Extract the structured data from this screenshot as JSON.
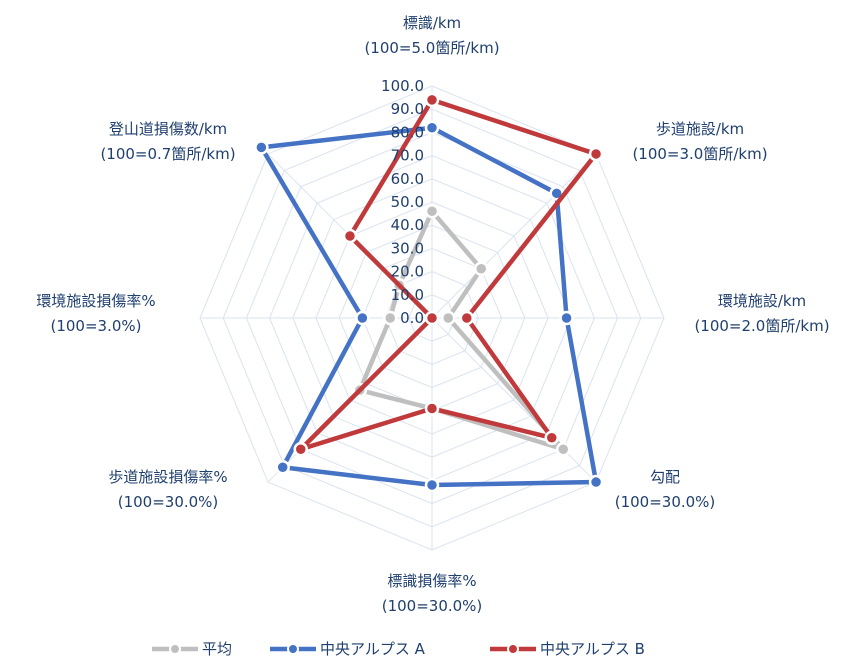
{
  "chart_data": {
    "type": "radar",
    "axes": [
      {
        "label": "標識/km",
        "sublabel": "(100=5.0箇所/km)"
      },
      {
        "label": "歩道施設/km",
        "sublabel": "(100=3.0箇所/km)"
      },
      {
        "label": "環境施設/km",
        "sublabel": "(100=2.0箇所/km)"
      },
      {
        "label": "勾配",
        "sublabel": "(100=30.0%)"
      },
      {
        "label": "標識損傷率%",
        "sublabel": "(100=30.0%)"
      },
      {
        "label": "歩道施設損傷率%",
        "sublabel": "(100=30.0%)"
      },
      {
        "label": "環境施設損傷率%",
        "sublabel": "(100=3.0%)"
      },
      {
        "label": "登山道損傷数/km",
        "sublabel": "(100=0.7箇所/km)"
      }
    ],
    "ticks": [
      "0.0",
      "10.0",
      "20.0",
      "30.0",
      "40.0",
      "50.0",
      "60.0",
      "70.0",
      "80.0",
      "90.0",
      "100.0"
    ],
    "range": [
      0,
      100
    ],
    "legend_position": "bottom",
    "series": [
      {
        "name": "平均",
        "color": "#bfbfbf",
        "values": [
          46,
          30,
          7,
          80,
          39,
          44,
          18,
          20
        ]
      },
      {
        "name": "中央アルプス A",
        "color": "#4472c4",
        "values": [
          82,
          76,
          58,
          100,
          72,
          91,
          30,
          104
        ]
      },
      {
        "name": "中央アルプス B",
        "color": "#c0393b",
        "values": [
          94,
          100,
          15,
          73,
          39,
          80,
          0,
          50
        ]
      }
    ]
  }
}
